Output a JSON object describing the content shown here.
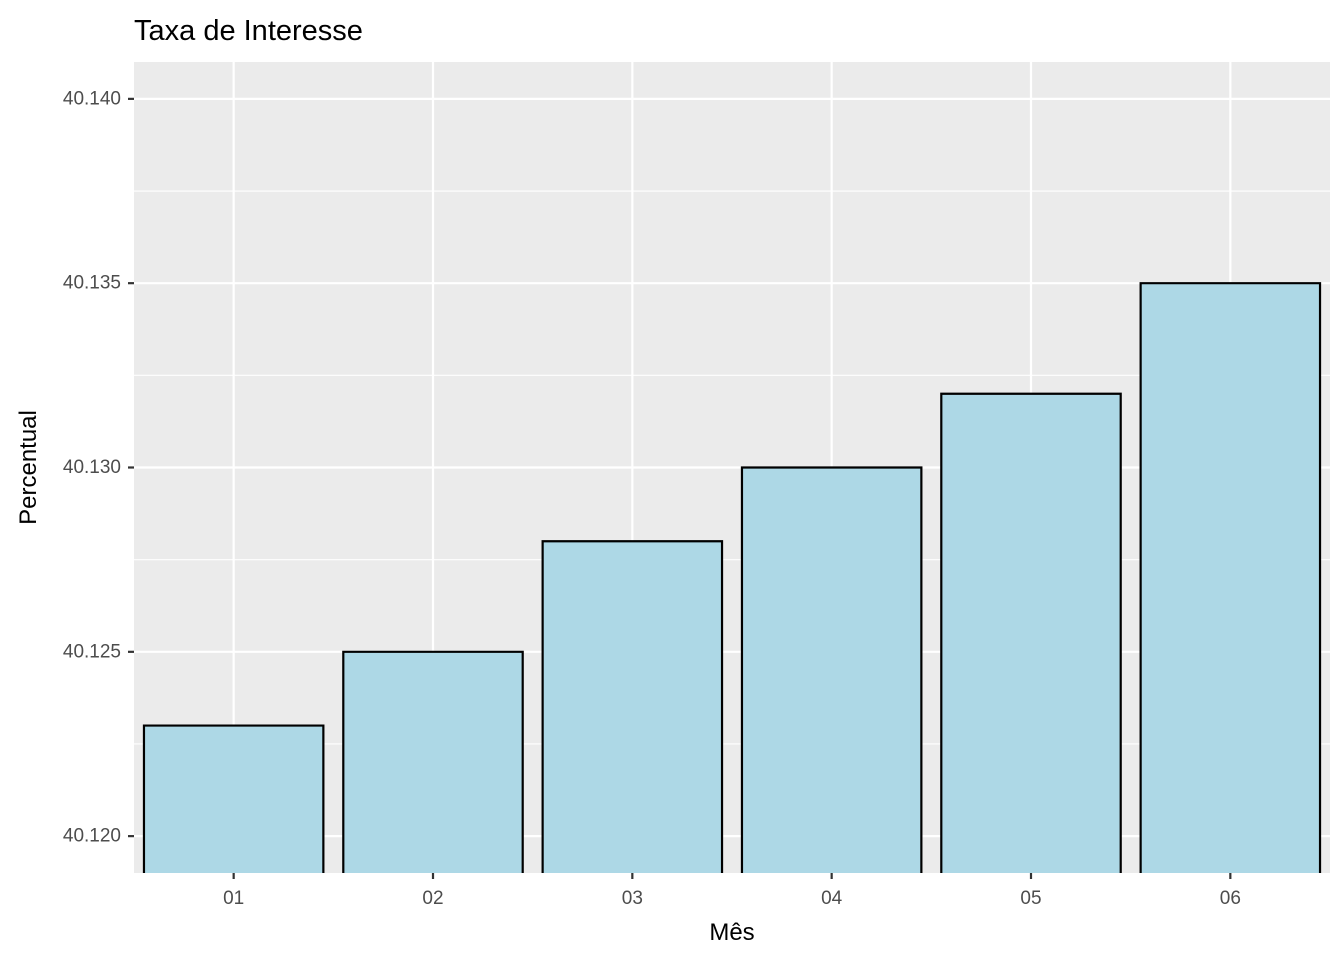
{
  "chart_data": {
    "type": "bar",
    "title": "Taxa de Interesse",
    "xlabel": "Mês",
    "ylabel": "Percentual",
    "categories": [
      "01",
      "02",
      "03",
      "04",
      "05",
      "06"
    ],
    "values": [
      40.123,
      40.125,
      40.128,
      40.13,
      40.132,
      40.135
    ],
    "ylim": [
      40.119,
      40.141
    ],
    "yticks": [
      40.12,
      40.125,
      40.13,
      40.135,
      40.14
    ],
    "ytick_labels": [
      "40.120",
      "40.125",
      "40.130",
      "40.135",
      "40.140"
    ],
    "grid": true,
    "legend": "none",
    "colors": {
      "panel_background": "#ebebeb",
      "grid": "#ffffff",
      "bar_fill": "#add8e6",
      "bar_outline": "#000000",
      "tick_text": "#4d4d4d",
      "text": "#000000"
    }
  }
}
